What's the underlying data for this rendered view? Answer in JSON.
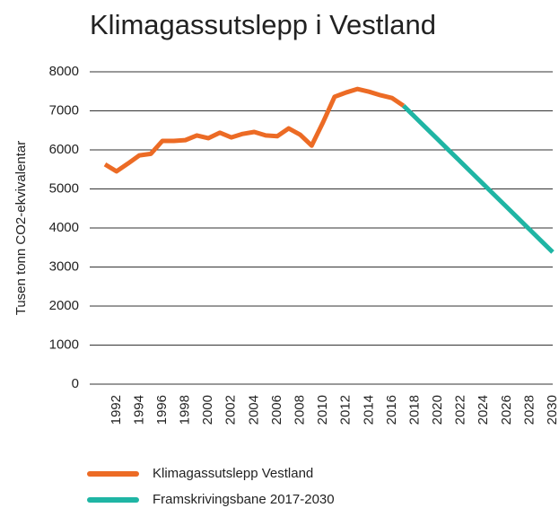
{
  "chart_data": {
    "type": "line",
    "title": "Klimagassutslepp i Vestland",
    "y_label": "Tusen tonn CO2-ekvivalentar",
    "x": [
      1991,
      1992,
      1993,
      1994,
      1995,
      1996,
      1997,
      1998,
      1999,
      2000,
      2001,
      2002,
      2003,
      2004,
      2005,
      2006,
      2007,
      2008,
      2009,
      2010,
      2011,
      2012,
      2013,
      2014,
      2015,
      2016,
      2017,
      2018,
      2019,
      2020,
      2021,
      2022,
      2023,
      2024,
      2025,
      2026,
      2027,
      2028,
      2029,
      2030
    ],
    "xlim": [
      1991,
      2030
    ],
    "xticks": [
      1992,
      1994,
      1996,
      1998,
      2000,
      2002,
      2004,
      2006,
      2008,
      2010,
      2012,
      2014,
      2016,
      2018,
      2020,
      2022,
      2024,
      2026,
      2028,
      2030
    ],
    "ylim": [
      0,
      8000
    ],
    "yticks": [
      0,
      1000,
      2000,
      3000,
      4000,
      5000,
      6000,
      7000,
      8000
    ],
    "grid": true,
    "legend": "bottom",
    "series": [
      {
        "name": "Klimagassutslepp Vestland",
        "color": "#ec6b25",
        "values": [
          5630,
          5450,
          5650,
          5860,
          5900,
          6230,
          6230,
          6250,
          6370,
          6300,
          6440,
          6320,
          6410,
          6460,
          6370,
          6350,
          6550,
          6390,
          6110,
          6710,
          7360,
          7470,
          7560,
          7490,
          7400,
          7330,
          7130,
          null,
          null,
          null,
          null,
          null,
          null,
          null,
          null,
          null,
          null,
          null,
          null,
          null
        ]
      },
      {
        "name": "Framskrivingsbane 2017-2030",
        "color": "#1fb5a4",
        "values": [
          null,
          null,
          null,
          null,
          null,
          null,
          null,
          null,
          null,
          null,
          null,
          null,
          null,
          null,
          null,
          null,
          null,
          null,
          null,
          null,
          null,
          null,
          null,
          null,
          null,
          null,
          7130,
          6842,
          6553,
          6265,
          5976,
          5688,
          5399,
          5111,
          4822,
          4534,
          4245,
          3957,
          3668,
          3380
        ]
      }
    ]
  }
}
